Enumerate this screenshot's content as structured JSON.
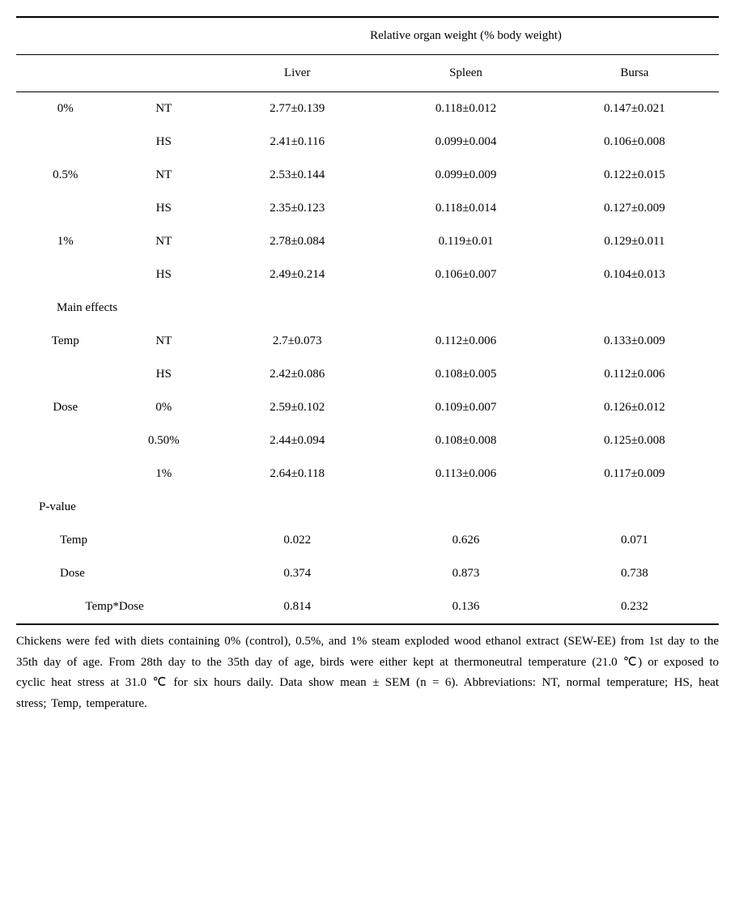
{
  "table": {
    "header_title": "Relative organ weight (% body weight)",
    "columns": [
      "Liver",
      "Spleen",
      "Bursa"
    ],
    "data_rows": [
      {
        "group": "0%",
        "cond": "NT",
        "liver": "2.77±0.139",
        "spleen": "0.118±0.012",
        "bursa": "0.147±0.021"
      },
      {
        "group": "",
        "cond": "HS",
        "liver": "2.41±0.116",
        "spleen": "0.099±0.004",
        "bursa": "0.106±0.008"
      },
      {
        "group": "0.5%",
        "cond": "NT",
        "liver": "2.53±0.144",
        "spleen": "0.099±0.009",
        "bursa": "0.122±0.015"
      },
      {
        "group": "",
        "cond": "HS",
        "liver": "2.35±0.123",
        "spleen": "0.118±0.014",
        "bursa": "0.127±0.009"
      },
      {
        "group": "1%",
        "cond": "NT",
        "liver": "2.78±0.084",
        "spleen": "0.119±0.01",
        "bursa": "0.129±0.011"
      },
      {
        "group": "",
        "cond": "HS",
        "liver": "2.49±0.214",
        "spleen": "0.106±0.007",
        "bursa": "0.104±0.013"
      }
    ],
    "main_effects_label": "Main effects",
    "main_effects": [
      {
        "factor": "Temp",
        "level": "NT",
        "liver": "2.7±0.073",
        "spleen": "0.112±0.006",
        "bursa": "0.133±0.009"
      },
      {
        "factor": "",
        "level": "HS",
        "liver": "2.42±0.086",
        "spleen": "0.108±0.005",
        "bursa": "0.112±0.006"
      },
      {
        "factor": "Dose",
        "level": "0%",
        "liver": "2.59±0.102",
        "spleen": "0.109±0.007",
        "bursa": "0.126±0.012"
      },
      {
        "factor": "",
        "level": "0.50%",
        "liver": "2.44±0.094",
        "spleen": "0.108±0.008",
        "bursa": "0.125±0.008"
      },
      {
        "factor": "",
        "level": "1%",
        "liver": "2.64±0.118",
        "spleen": "0.113±0.006",
        "bursa": "0.117±0.009"
      }
    ],
    "pvalue_label": "P-value",
    "pvalues": [
      {
        "factor": "Temp",
        "liver": "0.022",
        "spleen": "0.626",
        "bursa": "0.071"
      },
      {
        "factor": "Dose",
        "liver": "0.374",
        "spleen": "0.873",
        "bursa": "0.738"
      },
      {
        "factor": "Temp*Dose",
        "liver": "0.814",
        "spleen": "0.136",
        "bursa": "0.232"
      }
    ]
  },
  "caption": "Chickens were fed with diets containing 0% (control), 0.5%, and 1% steam exploded wood ethanol extract (SEW-EE) from 1st day to the 35th day of age.  From 28th day to the 35th day of age, birds were either kept at thermoneutral temperature (21.0 ℃) or exposed to cyclic heat stress at 31.0 ℃ for six hours daily.  Data show mean ± SEM (n = 6).  Abbreviations: NT, normal temperature; HS, heat stress; Temp, temperature."
}
